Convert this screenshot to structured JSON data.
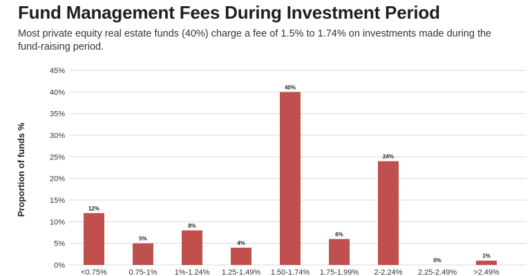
{
  "chart_data": {
    "type": "bar",
    "title": "Fund Management Fees During Investment Period",
    "subtitle": "Most private equity real estate funds (40%) charge a fee of 1.5% to 1.74% on investments made during the fund-raising period.",
    "xlabel": "",
    "ylabel": "Proportion of funds %",
    "categories": [
      "<0.75%",
      "0.75-1%",
      "1%-1.24%",
      "1.25-1.49%",
      "1.50-1.74%",
      "1.75-1.99%",
      "2-2.24%",
      "2.25-2.49%",
      ">2.49%"
    ],
    "values": [
      12,
      5,
      8,
      4,
      40,
      6,
      24,
      0,
      1
    ],
    "data_labels": [
      "12%",
      "5%",
      "8%",
      "4%",
      "40%",
      "6%",
      "24%",
      "0%",
      "1%"
    ],
    "ylim": [
      0,
      45
    ],
    "yticks": [
      0,
      5,
      10,
      15,
      20,
      25,
      30,
      35,
      40,
      45
    ],
    "ytick_labels": [
      "0%",
      "5%",
      "10%",
      "15%",
      "20%",
      "25%",
      "30%",
      "35%",
      "40%",
      "45%"
    ],
    "grid": true,
    "bar_color": "#c0504d",
    "grid_color": "#d9d9d9"
  }
}
